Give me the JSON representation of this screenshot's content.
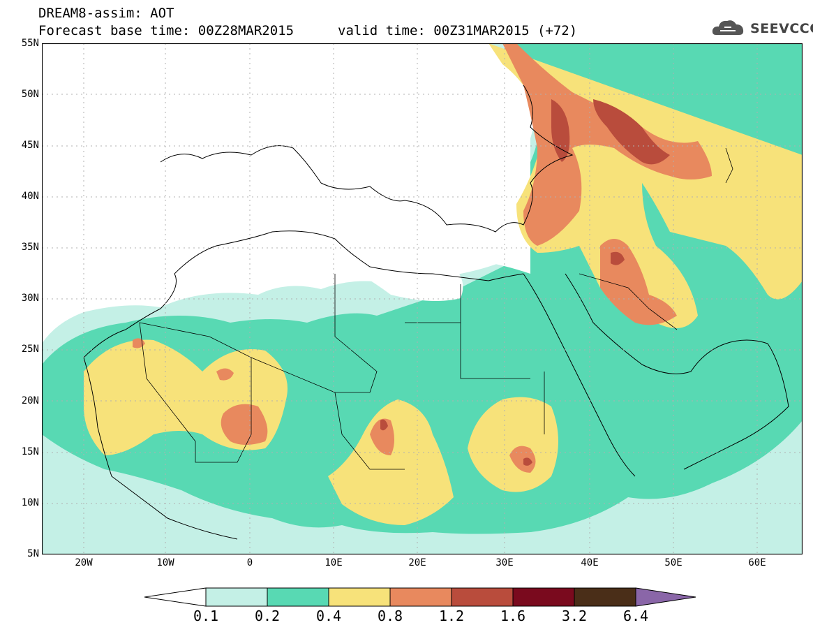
{
  "header": {
    "title_line1": "DREAM8-assim: AOT",
    "title_line2": "Forecast base time: 00Z28MAR2015",
    "valid_time": "valid time: 00Z31MAR2015 (+72)",
    "logo_text": "SEEVCCC"
  },
  "map": {
    "lat_labels": [
      "55N",
      "50N",
      "45N",
      "40N",
      "35N",
      "30N",
      "25N",
      "20N",
      "15N",
      "10N",
      "5N"
    ],
    "lon_labels": [
      "20W",
      "10W",
      "0",
      "10E",
      "20E",
      "30E",
      "40E",
      "50E",
      "60E"
    ]
  },
  "colorbar": {
    "labels": [
      "0.1",
      "0.2",
      "0.4",
      "0.8",
      "1.2",
      "1.6",
      "3.2",
      "6.4"
    ],
    "colors": [
      "#ffffff",
      "#c4f0e6",
      "#58d9b3",
      "#f7e27a",
      "#e8895e",
      "#b94c3c",
      "#7a0a1e",
      "#4a2e18",
      "#8a66a8"
    ]
  }
}
